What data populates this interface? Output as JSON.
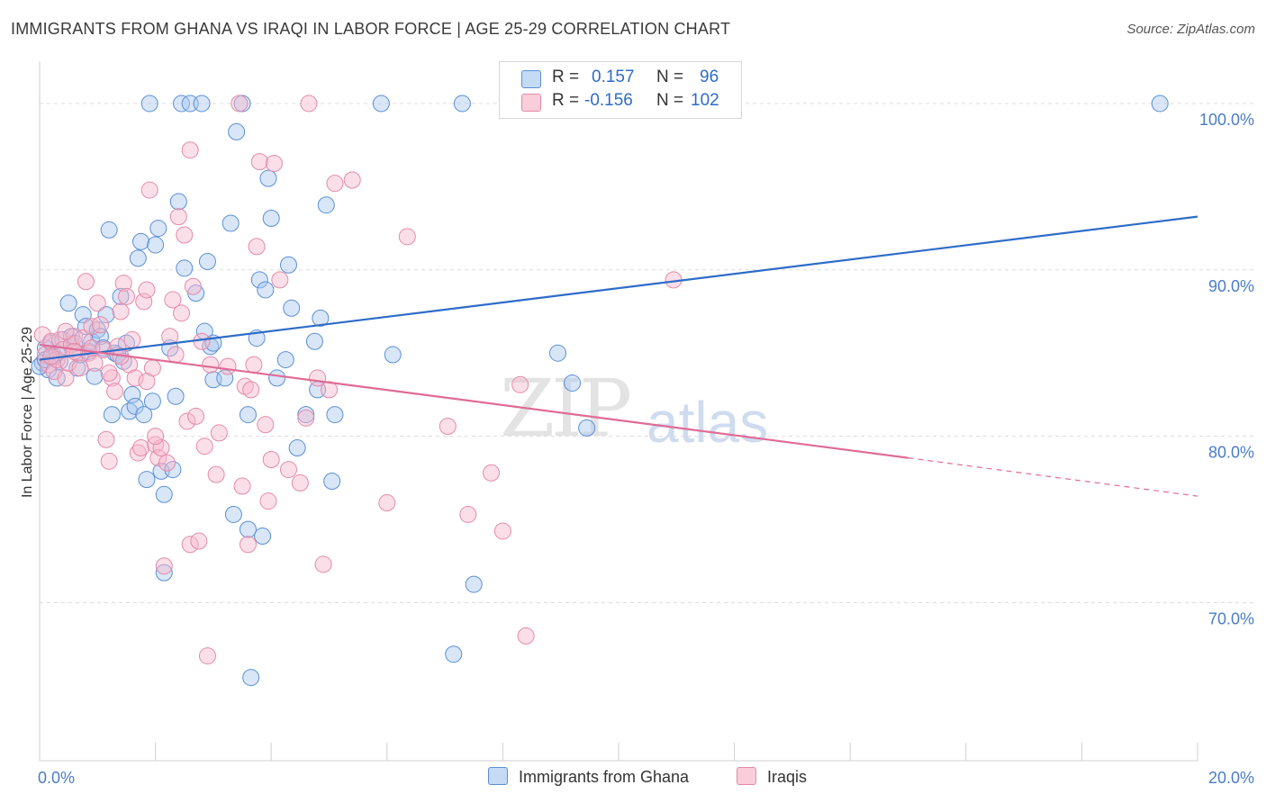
{
  "title": "IMMIGRANTS FROM GHANA VS IRAQI IN LABOR FORCE | AGE 25-29 CORRELATION CHART",
  "source": "Source: ZipAtlas.com",
  "watermark": {
    "zip": "ZIP",
    "atlas": "atlas"
  },
  "legend_top": {
    "rows": [
      {
        "r_label": "R =",
        "r_value": "0.157",
        "n_label": "N =",
        "n_value": "96"
      },
      {
        "r_label": "R =",
        "r_value": "-0.156",
        "n_label": "N =",
        "n_value": "102"
      }
    ]
  },
  "legend_bottom": {
    "series1": "Immigrants from Ghana",
    "series2": "Iraqis"
  },
  "colors": {
    "ghana_fill": "#a8c8f0",
    "ghana_stroke": "#5b8fd6",
    "ghana_line": "#2d6cc8",
    "iraqi_fill": "#f6b8cc",
    "iraqi_stroke": "#e48aa8",
    "iraqi_line": "#e06b95",
    "grid": "#dcdcdc",
    "tick_text": "#4a7cc9"
  },
  "chart_data": {
    "type": "scatter",
    "title": "IMMIGRANTS FROM GHANA VS IRAQI IN LABOR FORCE | AGE 25-29 CORRELATION CHART",
    "xlabel": "",
    "ylabel": "In Labor Force | Age 25-29",
    "xlim": [
      0,
      20
    ],
    "ylim": [
      60.5,
      102
    ],
    "x_tick_labels": [
      {
        "value": 0,
        "label": "0.0%"
      },
      {
        "value": 20,
        "label": "20.0%"
      }
    ],
    "x_minor_ticks": [
      0,
      2,
      4,
      6,
      8,
      10,
      12,
      14,
      16,
      18,
      20
    ],
    "y_ticks": [
      {
        "value": 70,
        "label": "70.0%"
      },
      {
        "value": 80,
        "label": "80.0%"
      },
      {
        "value": 90,
        "label": "90.0%"
      },
      {
        "value": 100,
        "label": "100.0%"
      }
    ],
    "grid": true,
    "legend_position": "top-center",
    "series": [
      {
        "name": "Immigrants from Ghana",
        "R": 0.157,
        "N": 96,
        "trend": {
          "x0": 0,
          "y0": 84.6,
          "x1": 20,
          "y1": 93.2
        },
        "points": [
          [
            0.05,
            84.4
          ],
          [
            0.1,
            85.3
          ],
          [
            0.15,
            84.0
          ],
          [
            0.2,
            85.6
          ],
          [
            0.25,
            84.8
          ],
          [
            0.3,
            83.5
          ],
          [
            0.35,
            84.5
          ],
          [
            0.4,
            85.8
          ],
          [
            0.5,
            88.0
          ],
          [
            0.55,
            86.0
          ],
          [
            0.6,
            85.6
          ],
          [
            0.65,
            84.1
          ],
          [
            0.7,
            84.9
          ],
          [
            0.75,
            87.3
          ],
          [
            0.8,
            86.6
          ],
          [
            0.85,
            85.1
          ],
          [
            0.9,
            85.7
          ],
          [
            0.95,
            83.6
          ],
          [
            1.0,
            86.4
          ],
          [
            1.05,
            86.0
          ],
          [
            1.1,
            85.3
          ],
          [
            1.15,
            87.3
          ],
          [
            1.2,
            92.4
          ],
          [
            1.25,
            81.3
          ],
          [
            1.3,
            85.0
          ],
          [
            1.35,
            84.9
          ],
          [
            1.4,
            88.4
          ],
          [
            1.45,
            84.5
          ],
          [
            1.5,
            85.6
          ],
          [
            1.55,
            81.5
          ],
          [
            1.6,
            82.5
          ],
          [
            1.65,
            81.8
          ],
          [
            1.7,
            90.7
          ],
          [
            1.75,
            91.7
          ],
          [
            1.8,
            81.3
          ],
          [
            1.85,
            77.4
          ],
          [
            1.9,
            100.0
          ],
          [
            1.95,
            82.1
          ],
          [
            2.0,
            91.5
          ],
          [
            2.05,
            92.5
          ],
          [
            2.1,
            77.9
          ],
          [
            2.15,
            76.5
          ],
          [
            2.15,
            71.8
          ],
          [
            2.25,
            85.3
          ],
          [
            2.3,
            78.0
          ],
          [
            2.35,
            82.4
          ],
          [
            2.4,
            94.1
          ],
          [
            2.45,
            100.0
          ],
          [
            2.5,
            90.1
          ],
          [
            2.6,
            100.0
          ],
          [
            2.7,
            88.6
          ],
          [
            2.8,
            100.0
          ],
          [
            2.85,
            86.3
          ],
          [
            2.9,
            90.5
          ],
          [
            2.95,
            85.4
          ],
          [
            3.0,
            83.4
          ],
          [
            3.0,
            85.6
          ],
          [
            3.2,
            83.5
          ],
          [
            3.3,
            92.8
          ],
          [
            3.35,
            75.3
          ],
          [
            3.4,
            98.3
          ],
          [
            3.5,
            100.0
          ],
          [
            3.6,
            74.4
          ],
          [
            3.6,
            81.3
          ],
          [
            3.65,
            65.5
          ],
          [
            3.75,
            85.9
          ],
          [
            3.8,
            89.4
          ],
          [
            3.85,
            74.0
          ],
          [
            3.9,
            88.8
          ],
          [
            3.95,
            95.5
          ],
          [
            4.0,
            93.1
          ],
          [
            4.1,
            83.5
          ],
          [
            4.25,
            84.6
          ],
          [
            4.3,
            90.3
          ],
          [
            4.35,
            87.7
          ],
          [
            4.45,
            79.3
          ],
          [
            4.6,
            81.3
          ],
          [
            4.75,
            85.7
          ],
          [
            4.8,
            82.8
          ],
          [
            4.85,
            87.1
          ],
          [
            4.95,
            93.9
          ],
          [
            5.05,
            77.3
          ],
          [
            5.1,
            81.3
          ],
          [
            5.9,
            100.0
          ],
          [
            6.1,
            84.9
          ],
          [
            7.15,
            66.9
          ],
          [
            7.5,
            71.1
          ],
          [
            7.3,
            100.0
          ],
          [
            8.2,
            100.0
          ],
          [
            8.95,
            85.0
          ],
          [
            9.2,
            83.2
          ],
          [
            9.45,
            80.5
          ],
          [
            0.0,
            84.2
          ],
          [
            0.1,
            84.6
          ],
          [
            19.35,
            100.0
          ],
          [
            0.3,
            85.0
          ]
        ]
      },
      {
        "name": "Iraqis",
        "R": -0.156,
        "N": 102,
        "trend": {
          "x0": 0,
          "y0": 85.5,
          "x1": 15,
          "y1": 78.7,
          "dashed_to_x": 20,
          "dashed_to_y": 76.4
        },
        "points": [
          [
            0.05,
            86.1
          ],
          [
            0.1,
            84.9
          ],
          [
            0.15,
            84.3
          ],
          [
            0.2,
            85.7
          ],
          [
            0.25,
            83.9
          ],
          [
            0.3,
            84.6
          ],
          [
            0.35,
            85.8
          ],
          [
            0.4,
            85.2
          ],
          [
            0.45,
            83.5
          ],
          [
            0.5,
            84.4
          ],
          [
            0.55,
            85.5
          ],
          [
            0.6,
            86.0
          ],
          [
            0.65,
            85.0
          ],
          [
            0.7,
            84.1
          ],
          [
            0.75,
            85.9
          ],
          [
            0.8,
            89.3
          ],
          [
            0.85,
            85.0
          ],
          [
            0.9,
            86.6
          ],
          [
            0.95,
            84.4
          ],
          [
            1.0,
            88.0
          ],
          [
            1.05,
            86.7
          ],
          [
            1.1,
            85.2
          ],
          [
            1.15,
            79.8
          ],
          [
            1.2,
            78.5
          ],
          [
            1.25,
            83.5
          ],
          [
            1.3,
            82.7
          ],
          [
            1.35,
            85.4
          ],
          [
            1.4,
            87.5
          ],
          [
            1.45,
            89.2
          ],
          [
            1.5,
            88.4
          ],
          [
            1.55,
            84.3
          ],
          [
            1.6,
            85.8
          ],
          [
            1.65,
            83.5
          ],
          [
            1.7,
            79.0
          ],
          [
            1.75,
            79.3
          ],
          [
            1.8,
            88.1
          ],
          [
            1.85,
            88.8
          ],
          [
            1.9,
            94.8
          ],
          [
            1.95,
            84.1
          ],
          [
            2.0,
            79.5
          ],
          [
            2.05,
            78.7
          ],
          [
            2.1,
            79.3
          ],
          [
            2.15,
            72.2
          ],
          [
            2.2,
            78.4
          ],
          [
            2.25,
            86.0
          ],
          [
            2.3,
            88.2
          ],
          [
            2.35,
            84.9
          ],
          [
            2.4,
            93.2
          ],
          [
            2.45,
            87.4
          ],
          [
            2.5,
            92.1
          ],
          [
            2.55,
            80.9
          ],
          [
            2.6,
            73.5
          ],
          [
            2.6,
            97.2
          ],
          [
            2.65,
            89.0
          ],
          [
            2.7,
            81.2
          ],
          [
            2.75,
            73.7
          ],
          [
            2.8,
            85.7
          ],
          [
            2.85,
            79.4
          ],
          [
            2.9,
            66.8
          ],
          [
            2.95,
            84.3
          ],
          [
            3.05,
            77.7
          ],
          [
            3.1,
            80.2
          ],
          [
            3.25,
            84.2
          ],
          [
            3.45,
            100.0
          ],
          [
            3.5,
            77.0
          ],
          [
            3.55,
            83.0
          ],
          [
            3.6,
            73.5
          ],
          [
            3.65,
            82.8
          ],
          [
            3.7,
            84.3
          ],
          [
            3.75,
            91.4
          ],
          [
            3.8,
            96.5
          ],
          [
            3.9,
            80.7
          ],
          [
            3.95,
            76.1
          ],
          [
            4.0,
            78.6
          ],
          [
            4.05,
            96.4
          ],
          [
            4.15,
            89.4
          ],
          [
            4.3,
            78.0
          ],
          [
            4.5,
            77.2
          ],
          [
            4.6,
            81.1
          ],
          [
            4.65,
            100.0
          ],
          [
            4.8,
            83.5
          ],
          [
            4.9,
            72.3
          ],
          [
            5.0,
            82.8
          ],
          [
            5.1,
            95.2
          ],
          [
            5.4,
            95.4
          ],
          [
            6.0,
            76.0
          ],
          [
            6.35,
            92.0
          ],
          [
            7.05,
            80.6
          ],
          [
            7.4,
            75.3
          ],
          [
            7.8,
            77.8
          ],
          [
            8.0,
            74.3
          ],
          [
            8.3,
            83.1
          ],
          [
            8.4,
            68.0
          ],
          [
            10.95,
            89.4
          ],
          [
            0.2,
            84.8
          ],
          [
            0.45,
            86.3
          ],
          [
            0.6,
            85.1
          ],
          [
            0.9,
            85.3
          ],
          [
            1.2,
            83.8
          ],
          [
            1.4,
            84.8
          ],
          [
            1.85,
            83.3
          ],
          [
            2.0,
            80.0
          ]
        ]
      }
    ]
  }
}
